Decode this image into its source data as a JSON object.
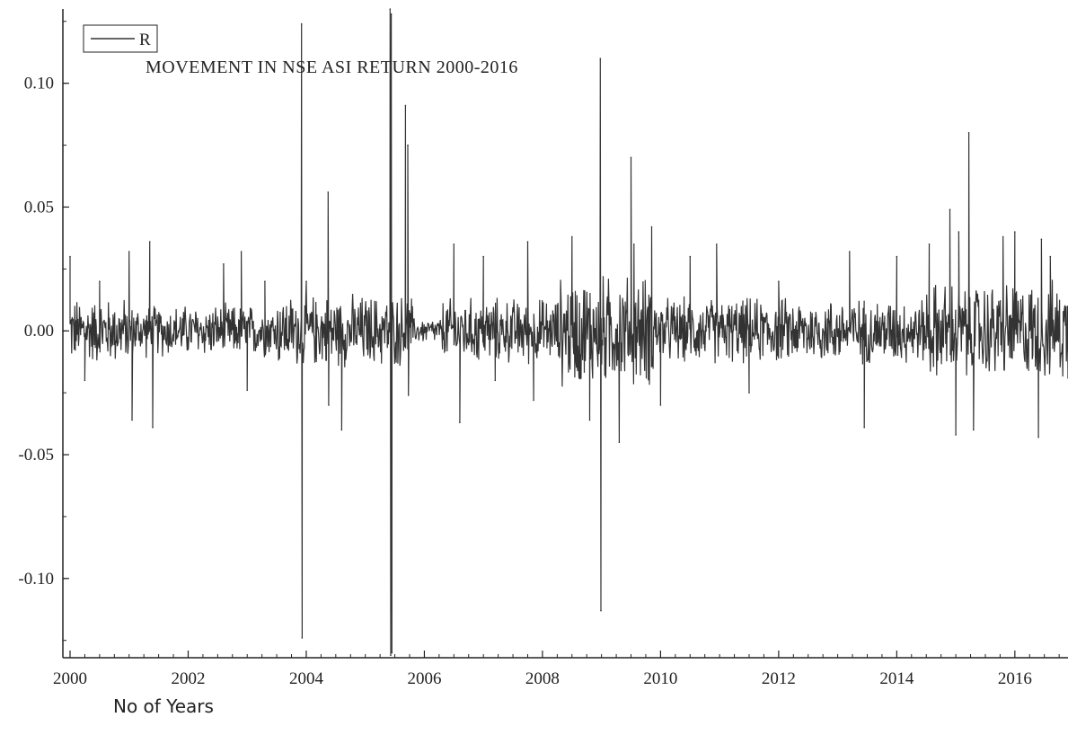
{
  "chart_data": {
    "type": "line",
    "title": "MOVEMENT IN NSE ASI RETURN 2000-2016",
    "xlabel": "No of Years",
    "ylabel": "",
    "xlim": [
      2000,
      2016.9
    ],
    "ylim": [
      -0.132,
      0.13
    ],
    "x_ticks": [
      2000,
      2002,
      2004,
      2006,
      2008,
      2010,
      2012,
      2014,
      2016
    ],
    "x_tick_labels": [
      "2000",
      "2002",
      "2004",
      "2006",
      "2008",
      "2010",
      "2012",
      "2014",
      "2016"
    ],
    "y_ticks": [
      0.1,
      0.05,
      0.0,
      -0.05,
      -0.1
    ],
    "y_tick_labels": [
      "0.10",
      "0.05",
      "0.00",
      "-0.05",
      "-0.10"
    ],
    "legend": {
      "position": "top-left",
      "entries": [
        "R"
      ]
    },
    "series": [
      {
        "name": "R",
        "color": "#333333",
        "x": [
          2000.0,
          2000.25,
          2000.5,
          2001.0,
          2001.05,
          2001.35,
          2001.4,
          2002.6,
          2002.9,
          2003.0,
          2003.3,
          2003.92,
          2003.93,
          2004.0,
          2004.37,
          2004.38,
          2004.6,
          2005.42,
          2005.43,
          2005.44,
          2005.45,
          2005.68,
          2005.72,
          2005.73,
          2006.5,
          2006.6,
          2007.0,
          2007.2,
          2007.75,
          2007.85,
          2008.5,
          2008.8,
          2008.98,
          2008.99,
          2009.3,
          2009.5,
          2009.55,
          2009.85,
          2010.0,
          2010.5,
          2010.95,
          2011.5,
          2012.0,
          2013.2,
          2013.45,
          2014.0,
          2014.55,
          2014.9,
          2015.0,
          2015.05,
          2015.22,
          2015.3,
          2015.8,
          2016.0,
          2016.4,
          2016.45,
          2016.6,
          2016.9
        ],
        "y": [
          0.03,
          -0.02,
          0.02,
          0.032,
          -0.036,
          0.036,
          -0.039,
          0.027,
          0.032,
          -0.024,
          0.02,
          0.124,
          -0.124,
          0.02,
          0.056,
          -0.03,
          -0.04,
          0.13,
          -0.131,
          0.128,
          -0.13,
          0.091,
          0.075,
          -0.026,
          0.035,
          -0.037,
          0.03,
          -0.02,
          0.036,
          -0.028,
          0.038,
          -0.036,
          0.11,
          -0.113,
          -0.045,
          0.07,
          0.035,
          0.042,
          -0.03,
          0.03,
          0.035,
          -0.025,
          0.02,
          0.032,
          -0.039,
          0.03,
          0.035,
          0.049,
          -0.042,
          0.04,
          0.08,
          -0.04,
          0.038,
          0.04,
          -0.043,
          0.037,
          0.03,
          -0.019
        ]
      }
    ]
  }
}
